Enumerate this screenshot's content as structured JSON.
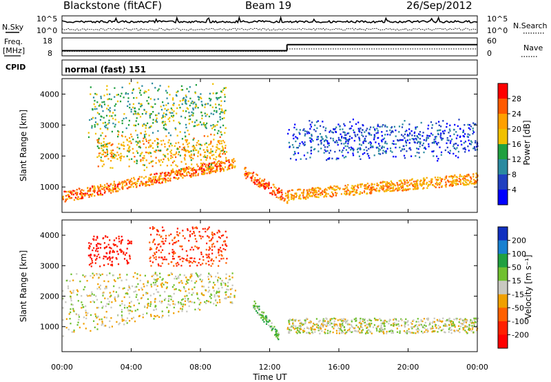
{
  "header": {
    "station": "Blackstone (fitACF)",
    "beam": "Beam 19",
    "date": "26/Sep/2012"
  },
  "noise_panel": {
    "left_label": "N.Sky",
    "right_label": "N.Search",
    "ticks": [
      "10^5",
      "10^0"
    ]
  },
  "freq_panel": {
    "left_label_line1": "Freq.",
    "left_label_line2": "[MHz]",
    "right_label": "Nave",
    "left_ticks": [
      "18",
      "8"
    ],
    "right_ticks": [
      "60",
      "0"
    ]
  },
  "cpid_panel": {
    "label": "CPID",
    "mode_text": "normal (fast) 151"
  },
  "power_panel": {
    "ylabel": "Slant Range [km]",
    "yticks": [
      "4000",
      "3000",
      "2000",
      "1000"
    ],
    "colorbar_label": "Power [dB]",
    "colorbar_ticks": [
      "28",
      "24",
      "20",
      "16",
      "12",
      "8",
      "4"
    ],
    "colorbar_colors": [
      "#ff0000",
      "#ff5a00",
      "#ffa000",
      "#f0c000",
      "#20a040",
      "#2a8aa0",
      "#2040c0",
      "#0000ff"
    ]
  },
  "velocity_panel": {
    "ylabel": "Slant Range [km]",
    "yticks": [
      "4000",
      "3000",
      "2000",
      "1000"
    ],
    "colorbar_label": "Velocity [m s⁻¹]",
    "colorbar_ticks": [
      "200",
      "100",
      "50",
      "15",
      "-15",
      "-50",
      "-100",
      "-200"
    ],
    "colorbar_colors": [
      "#1030c0",
      "#1880d0",
      "#20a040",
      "#70c030",
      "#c8c8c0",
      "#f0a000",
      "#ff6000",
      "#ff2000",
      "#ff0000"
    ]
  },
  "time_axis": {
    "xlabel": "Time UT",
    "ticks": [
      "00:00",
      "04:00",
      "08:00",
      "12:00",
      "16:00",
      "20:00",
      "00:00"
    ]
  },
  "chart_data": {
    "type": "heatmap",
    "title": "Blackstone (fitACF)  Beam 19  26/Sep/2012",
    "xlabel": "Time UT",
    "x_range_hours": [
      0,
      24
    ],
    "ylabel": "Slant Range [km]",
    "y_range_km": [
      180,
      4500
    ],
    "grid": false,
    "power_colorbar": {
      "label": "Power [dB]",
      "ticks": [
        28,
        24,
        20,
        16,
        12,
        8,
        4
      ]
    },
    "velocity_colorbar": {
      "label": "Velocity [m s^-1]",
      "ticks": [
        200,
        100,
        50,
        15,
        -15,
        -50,
        -100,
        -200
      ]
    },
    "frequency_mhz": [
      {
        "start_hour": 0,
        "end_hour": 13,
        "value": 10.5
      },
      {
        "start_hour": 13,
        "end_hour": 24,
        "value": 14.5
      }
    ],
    "nave": [
      {
        "start_hour": 0,
        "end_hour": 13,
        "value": 13
      },
      {
        "start_hour": 13,
        "end_hour": 24,
        "value": 22
      }
    ],
    "cpid": [
      {
        "start_hour": 0,
        "end_hour": 24,
        "value": 151,
        "name": "normal (fast)"
      }
    ],
    "power_features": [
      {
        "t0": 0.0,
        "t1": 10.0,
        "r0": 700,
        "r1": 1800,
        "db": 24,
        "note": "main band rising from 700 to 1800 km"
      },
      {
        "t0": 2.0,
        "t1": 9.5,
        "r0": 1800,
        "r1": 2600,
        "db": 20,
        "note": "middle band"
      },
      {
        "t0": 1.5,
        "t1": 9.5,
        "r0": 2800,
        "r1": 4200,
        "db": 14,
        "note": "upper patchy band"
      },
      {
        "t0": 10.5,
        "t1": 13.0,
        "r0": 1500,
        "r1": 650,
        "db": 26,
        "note": "descending band to 12:30"
      },
      {
        "t0": 13.0,
        "t1": 24.0,
        "r0": 750,
        "r1": 1300,
        "db": 22,
        "note": "steady band after 13:00"
      },
      {
        "t0": 13.0,
        "t1": 24.0,
        "r0": 2100,
        "r1": 3000,
        "db": 6,
        "note": "weak scatter after 13:00"
      }
    ],
    "velocity_features": [
      {
        "t0": 1.5,
        "t1": 4.0,
        "r0": 3000,
        "r1": 4000,
        "v": -180
      },
      {
        "t0": 5.0,
        "t1": 9.5,
        "r0": 3000,
        "r1": 4300,
        "v": -120
      },
      {
        "t0": 0.0,
        "t1": 10.0,
        "r0": 700,
        "r1": 2800,
        "v": 0
      },
      {
        "t0": 11.0,
        "t1": 12.5,
        "r0": 700,
        "r1": 1800,
        "v": 40
      },
      {
        "t0": 13.0,
        "t1": 24.0,
        "r0": 800,
        "r1": 1300,
        "v": 0
      }
    ]
  }
}
